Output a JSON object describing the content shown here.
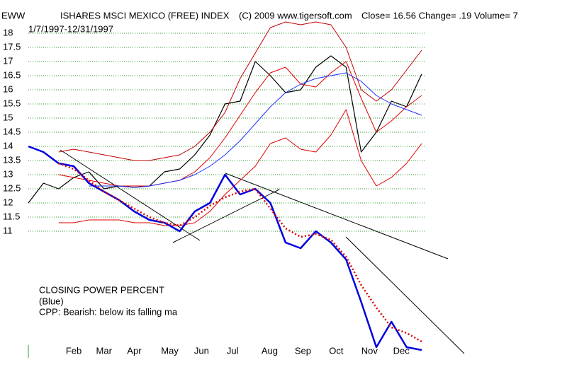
{
  "chart_data": {
    "type": "line",
    "ticker": "EWW",
    "title": "ISHARES MSCI MEXICO (FREE) INDEX",
    "copyright": "(C) 2009 www.tigersoft.com",
    "quote": "Close=  16.56  Change= .19 Volume= 7",
    "subtitle": "1/7/1997-12/31/1997",
    "annotations": [
      "CLOSING POWER PERCENT",
      "(Blue)",
      "CPP: Bearish: below its falling ma"
    ],
    "x": [
      0,
      2,
      4,
      6,
      8,
      10,
      12,
      14,
      16,
      18,
      20,
      22,
      24,
      26,
      28,
      30,
      32,
      34,
      36,
      38,
      40,
      42,
      44,
      46,
      48,
      50,
      52
    ],
    "xlim": [
      0,
      52
    ],
    "xticks": [
      {
        "value": 6.0,
        "label": "Feb"
      },
      {
        "value": 10.0,
        "label": "Mar"
      },
      {
        "value": 14.0,
        "label": "Apr"
      },
      {
        "value": 18.7,
        "label": "May"
      },
      {
        "value": 22.9,
        "label": "Jun"
      },
      {
        "value": 27.0,
        "label": "Jul"
      },
      {
        "value": 31.9,
        "label": "Aug"
      },
      {
        "value": 36.3,
        "label": "Sep"
      },
      {
        "value": 40.7,
        "label": "Oct"
      },
      {
        "value": 45.1,
        "label": "Nov"
      },
      {
        "value": 49.3,
        "label": "Dec"
      }
    ],
    "ylim": [
      6.6,
      18.4
    ],
    "yticks": [
      11,
      11.5,
      12,
      12.5,
      13,
      13.5,
      14,
      14.5,
      15,
      15.5,
      16,
      16.5,
      17,
      17.5,
      18
    ],
    "grid": true,
    "series": [
      {
        "color": "#000000",
        "width": 1.2,
        "dash": false,
        "values": [
          12.0,
          12.7,
          12.5,
          12.9,
          13.1,
          12.5,
          12.6,
          12.55,
          12.6,
          13.1,
          13.2,
          13.7,
          14.4,
          15.5,
          15.6,
          17.0,
          16.5,
          15.9,
          16.0,
          16.8,
          17.2,
          16.8,
          13.8,
          14.5,
          15.6,
          15.4,
          16.56
        ]
      },
      {
        "color": "#c00000",
        "width": 1,
        "dash": false,
        "values": [
          null,
          null,
          13.8,
          13.9,
          13.8,
          13.7,
          13.6,
          13.5,
          13.5,
          13.6,
          13.7,
          14.0,
          14.5,
          15.2,
          16.4,
          17.3,
          18.2,
          18.4,
          18.3,
          18.4,
          18.3,
          17.5,
          16.0,
          15.6,
          16.0,
          16.7,
          17.4
        ]
      },
      {
        "color": "#e00000",
        "width": 1,
        "dash": false,
        "values": [
          null,
          null,
          11.3,
          11.3,
          11.4,
          11.4,
          11.4,
          11.3,
          11.3,
          11.2,
          11.2,
          11.3,
          11.7,
          12.3,
          12.8,
          13.3,
          14.1,
          14.3,
          13.9,
          13.8,
          14.4,
          15.3,
          13.5,
          12.6,
          12.9,
          13.4,
          14.1
        ]
      },
      {
        "color": "#e00000",
        "width": 1,
        "dash": false,
        "values": [
          null,
          null,
          13.0,
          12.9,
          12.8,
          12.7,
          12.6,
          12.6,
          12.6,
          12.7,
          12.8,
          13.1,
          13.6,
          14.3,
          15.1,
          15.9,
          16.6,
          16.8,
          16.2,
          16.1,
          16.6,
          17.0,
          15.7,
          14.5,
          14.9,
          15.4,
          15.8
        ]
      },
      {
        "color": "#2030ff",
        "width": 1,
        "dash": false,
        "values": [
          null,
          null,
          null,
          null,
          12.6,
          12.6,
          12.6,
          12.55,
          12.6,
          12.7,
          12.8,
          13.0,
          13.3,
          13.7,
          14.2,
          14.8,
          15.4,
          15.9,
          16.2,
          16.4,
          16.5,
          16.6,
          16.3,
          15.8,
          15.5,
          15.3,
          15.1
        ]
      },
      {
        "color": "#0000e0",
        "width": 2.5,
        "dash": false,
        "values": [
          14.0,
          13.8,
          13.4,
          13.3,
          12.7,
          12.4,
          12.1,
          11.7,
          11.4,
          11.3,
          11.0,
          11.7,
          12.0,
          13.0,
          12.3,
          12.5,
          12.0,
          10.6,
          10.4,
          11.0,
          10.6,
          10.0,
          8.5,
          6.9,
          7.8,
          6.9,
          6.8
        ]
      },
      {
        "color": "#e00000",
        "width": 2.5,
        "dash": true,
        "values": [
          null,
          null,
          13.4,
          13.2,
          12.8,
          12.4,
          12.1,
          11.8,
          11.5,
          11.3,
          11.2,
          11.5,
          11.9,
          12.2,
          12.4,
          12.5,
          11.8,
          11.1,
          10.8,
          10.9,
          10.7,
          10.1,
          9.1,
          8.3,
          7.6,
          7.4,
          7.1
        ]
      }
    ]
  }
}
